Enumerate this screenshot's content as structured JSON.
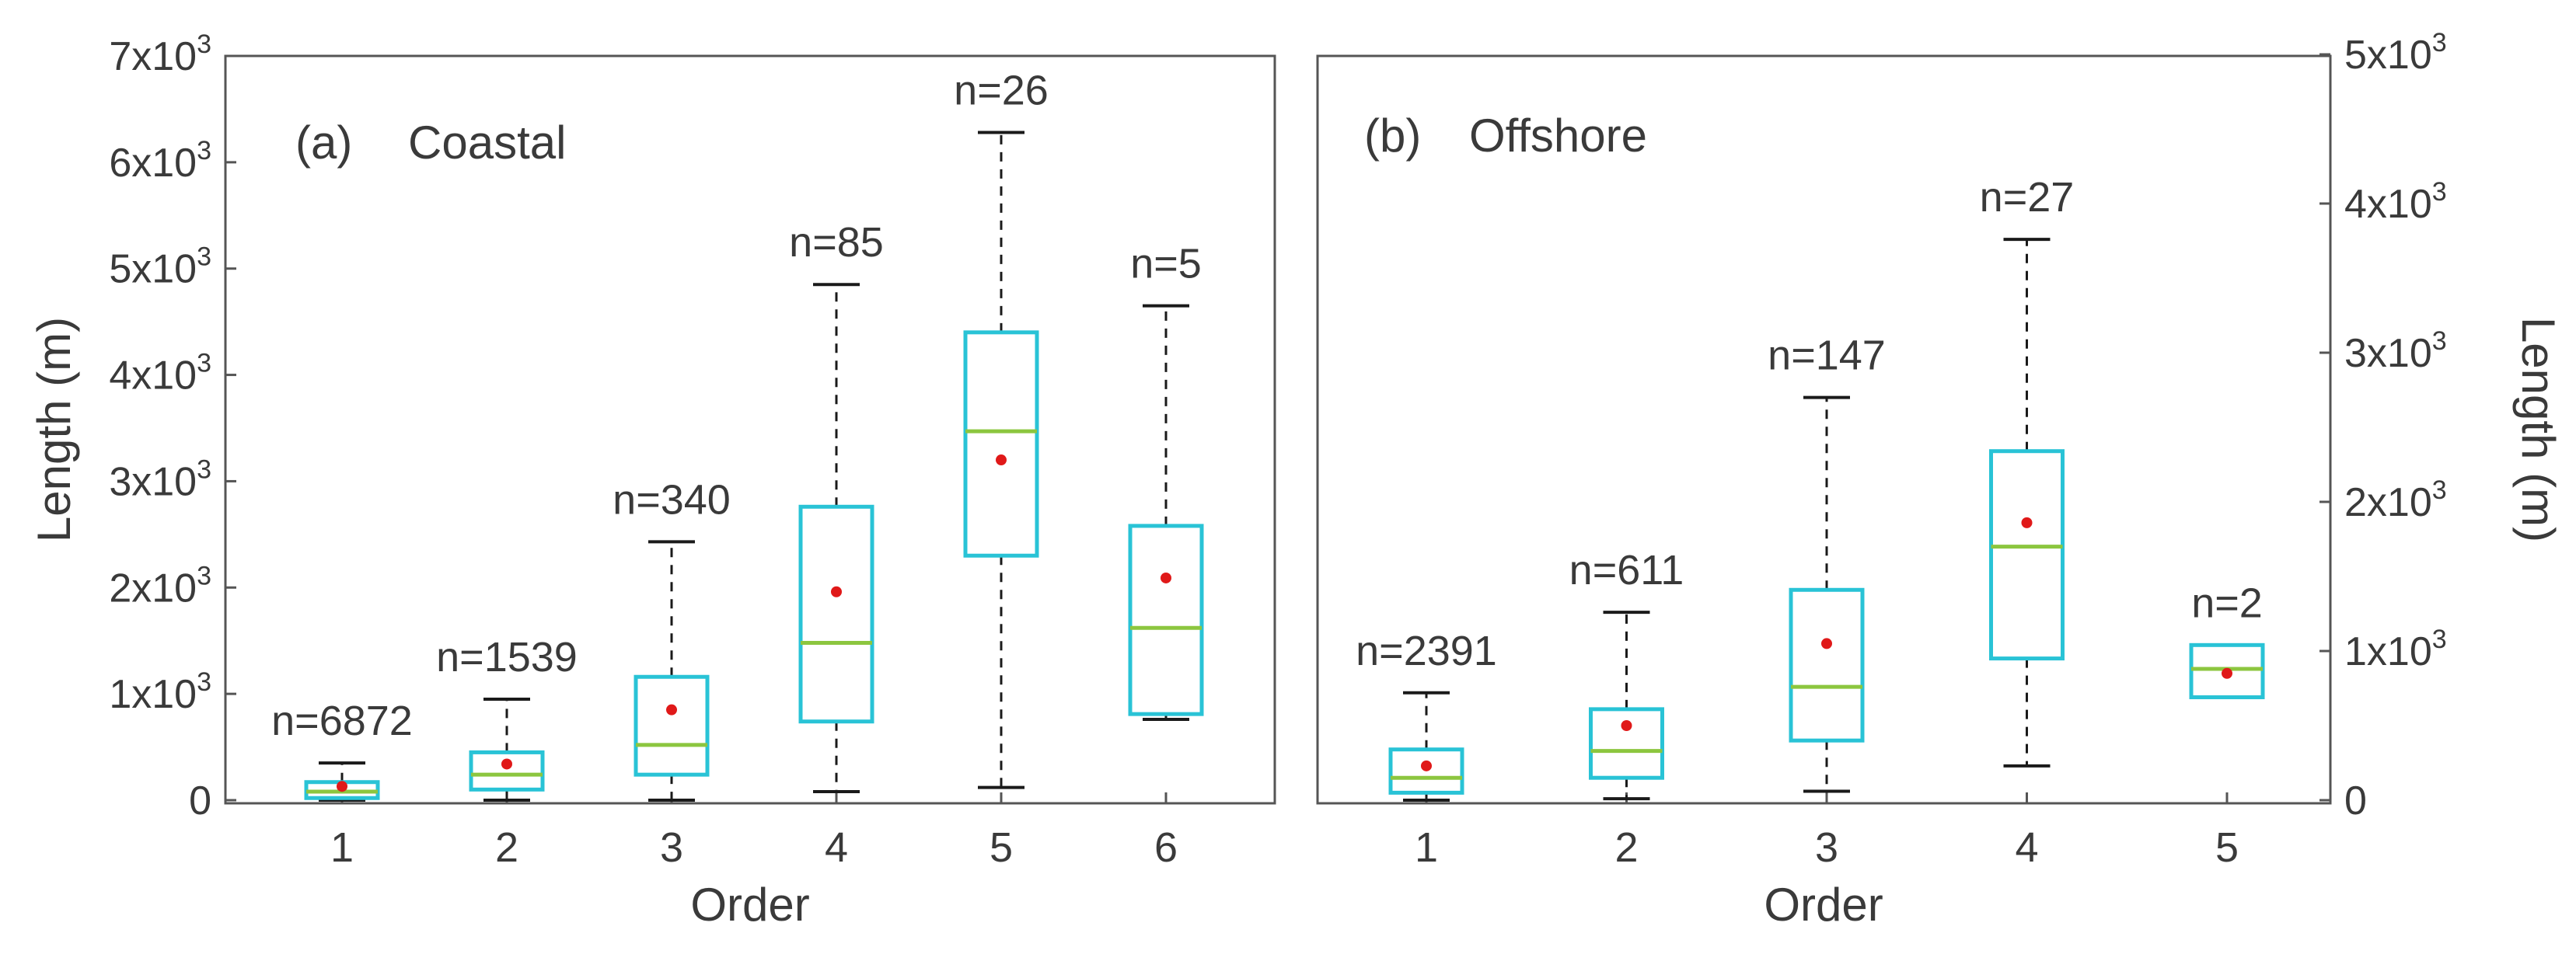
{
  "chart_data": [
    {
      "type": "box",
      "panel_label": "(a)",
      "title": "Coastal",
      "xlabel": "Order",
      "ylabel": "Length (m)",
      "y_axis_side": "left",
      "ylim": [
        0,
        7000
      ],
      "yticks": [
        0,
        1000,
        2000,
        3000,
        4000,
        5000,
        6000,
        7000
      ],
      "ytick_labels": [
        {
          "base": "0",
          "exp": ""
        },
        {
          "base": "1x10",
          "exp": "3"
        },
        {
          "base": "2x10",
          "exp": "3"
        },
        {
          "base": "3x10",
          "exp": "3"
        },
        {
          "base": "4x10",
          "exp": "3"
        },
        {
          "base": "5x10",
          "exp": "3"
        },
        {
          "base": "6x10",
          "exp": "3"
        },
        {
          "base": "7x10",
          "exp": "3"
        }
      ],
      "categories": [
        "1",
        "2",
        "3",
        "4",
        "5",
        "6"
      ],
      "boxes": [
        {
          "min": 0,
          "q1": 20,
          "median": 80,
          "q3": 170,
          "max": 350,
          "mean": 130,
          "n_label": "n=6872"
        },
        {
          "min": 0,
          "q1": 100,
          "median": 240,
          "q3": 450,
          "max": 950,
          "mean": 340,
          "n_label": "n=1539"
        },
        {
          "min": 0,
          "q1": 240,
          "median": 520,
          "q3": 1160,
          "max": 2430,
          "mean": 850,
          "n_label": "n=340"
        },
        {
          "min": 80,
          "q1": 740,
          "median": 1480,
          "q3": 2760,
          "max": 4850,
          "mean": 1960,
          "n_label": "n=85"
        },
        {
          "min": 120,
          "q1": 2300,
          "median": 3470,
          "q3": 4400,
          "max": 6280,
          "mean": 3200,
          "n_label": "n=26"
        },
        {
          "min": 760,
          "q1": 810,
          "median": 1620,
          "q3": 2580,
          "max": 4650,
          "mean": 2090,
          "n_label": "n=5"
        }
      ]
    },
    {
      "type": "box",
      "panel_label": "(b)",
      "title": "Offshore",
      "xlabel": "Order",
      "ylabel": "Length (m)",
      "y_axis_side": "right",
      "ylim": [
        0,
        5000
      ],
      "yticks": [
        0,
        1000,
        2000,
        3000,
        4000,
        5000
      ],
      "ytick_labels": [
        {
          "base": "0",
          "exp": ""
        },
        {
          "base": "1x10",
          "exp": "3"
        },
        {
          "base": "2x10",
          "exp": "3"
        },
        {
          "base": "3x10",
          "exp": "3"
        },
        {
          "base": "4x10",
          "exp": "3"
        },
        {
          "base": "5x10",
          "exp": "3"
        }
      ],
      "categories": [
        "1",
        "2",
        "3",
        "4",
        "5"
      ],
      "boxes": [
        {
          "min": 0,
          "q1": 50,
          "median": 150,
          "q3": 340,
          "max": 720,
          "mean": 230,
          "n_label": "n=2391"
        },
        {
          "min": 10,
          "q1": 150,
          "median": 330,
          "q3": 610,
          "max": 1260,
          "mean": 500,
          "n_label": "n=611"
        },
        {
          "min": 60,
          "q1": 400,
          "median": 760,
          "q3": 1410,
          "max": 2700,
          "mean": 1050,
          "n_label": "n=147"
        },
        {
          "min": 230,
          "q1": 950,
          "median": 1700,
          "q3": 2340,
          "max": 3760,
          "mean": 1860,
          "n_label": "n=27"
        },
        {
          "min": 690,
          "q1": 690,
          "median": 880,
          "q3": 1040,
          "max": 1040,
          "mean": 850,
          "n_label": "n=2"
        }
      ]
    }
  ],
  "colors": {
    "box": "#29c3d6",
    "median": "#8cc63f",
    "mean": "#e01919",
    "whisker": "#1a1a1a",
    "frame": "#555555",
    "text": "#3a3a3a"
  }
}
